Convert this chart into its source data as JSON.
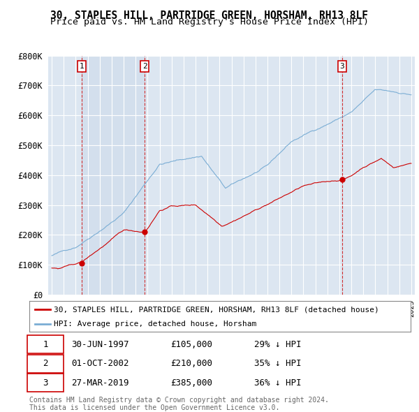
{
  "title": "30, STAPLES HILL, PARTRIDGE GREEN, HORSHAM, RH13 8LF",
  "subtitle": "Price paid vs. HM Land Registry's House Price Index (HPI)",
  "ylim": [
    0,
    800000
  ],
  "yticks": [
    0,
    100000,
    200000,
    300000,
    400000,
    500000,
    600000,
    700000,
    800000
  ],
  "ytick_labels": [
    "£0",
    "£100K",
    "£200K",
    "£300K",
    "£400K",
    "£500K",
    "£600K",
    "£700K",
    "£800K"
  ],
  "xlim_start": 1994.7,
  "xlim_end": 2025.3,
  "bg_color": "#dce6f1",
  "highlight_color": "#ccdaea",
  "grid_color": "#ffffff",
  "sale_color": "#cc0000",
  "hpi_color": "#7aadd4",
  "sale_label": "30, STAPLES HILL, PARTRIDGE GREEN, HORSHAM, RH13 8LF (detached house)",
  "hpi_label": "HPI: Average price, detached house, Horsham",
  "trans_dates": [
    1997.5,
    2002.75,
    2019.23
  ],
  "trans_prices": [
    105000,
    210000,
    385000
  ],
  "trans_labels": [
    "1",
    "2",
    "3"
  ],
  "transaction_table": [
    [
      "1",
      "30-JUN-1997",
      "£105,000",
      "29% ↓ HPI"
    ],
    [
      "2",
      "01-OCT-2002",
      "£210,000",
      "35% ↓ HPI"
    ],
    [
      "3",
      "27-MAR-2019",
      "£385,000",
      "36% ↓ HPI"
    ]
  ],
  "footer": "Contains HM Land Registry data © Crown copyright and database right 2024.\nThis data is licensed under the Open Government Licence v3.0.",
  "title_fontsize": 10.5,
  "subtitle_fontsize": 9.5
}
